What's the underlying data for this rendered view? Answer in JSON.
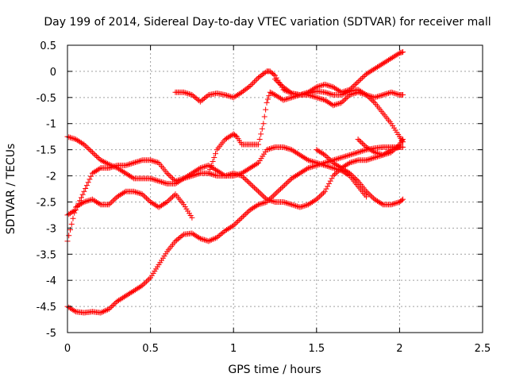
{
  "chart_data": {
    "type": "scatter",
    "title": "Day 199 of 2014, Sidereal Day-to-day VTEC variation (SDTVAR) for receiver mall",
    "xlabel": "GPS time / hours",
    "ylabel": "SDTVAR / TECUs",
    "xlim": [
      0,
      2.5
    ],
    "ylim": [
      -5,
      0.5
    ],
    "xticks": [
      0,
      0.5,
      1,
      1.5,
      2,
      2.5
    ],
    "xtick_labels": [
      "0",
      "0.5",
      "1",
      "1.5",
      "2",
      "2.5"
    ],
    "yticks": [
      0.5,
      0,
      -0.5,
      -1,
      -1.5,
      -2,
      -2.5,
      -3,
      -3.5,
      -4,
      -4.5,
      -5
    ],
    "ytick_labels": [
      "0.5",
      "0",
      "-0.5",
      "-1",
      "-1.5",
      "-2",
      "-2.5",
      "-3",
      "-3.5",
      "-4",
      "-4.5",
      "-5"
    ],
    "grid": true,
    "marker": "+",
    "color": "#ff0000",
    "series": [
      {
        "x": [
          0,
          0.05,
          0.1,
          0.15,
          0.2,
          0.25,
          0.3,
          0.35,
          0.4,
          0.45,
          0.5,
          0.55,
          0.6,
          0.65,
          0.7,
          0.75,
          0.8,
          0.85,
          0.9,
          0.95,
          1.0,
          1.05,
          1.1,
          1.15,
          1.2,
          1.25,
          1.3,
          1.35,
          1.4,
          1.45,
          1.5,
          1.55,
          1.6,
          1.65,
          1.7,
          1.75,
          1.8,
          1.85,
          1.9,
          1.95,
          2.02
        ],
        "y": [
          -4.5,
          -4.6,
          -4.62,
          -4.6,
          -4.62,
          -4.55,
          -4.4,
          -4.3,
          -4.2,
          -4.1,
          -3.95,
          -3.7,
          -3.45,
          -3.25,
          -3.12,
          -3.1,
          -3.2,
          -3.25,
          -3.18,
          -3.05,
          -2.95,
          -2.8,
          -2.65,
          -2.55,
          -2.5,
          -2.35,
          -2.2,
          -2.05,
          -1.95,
          -1.85,
          -1.8,
          -1.75,
          -1.7,
          -1.65,
          -1.6,
          -1.55,
          -1.5,
          -1.47,
          -1.45,
          -1.45,
          -1.45
        ]
      },
      {
        "x": [
          0,
          0.05,
          0.1,
          0.15,
          0.2,
          0.25,
          0.3,
          0.35,
          0.4,
          0.45,
          0.5,
          0.55,
          0.6,
          0.65,
          0.7,
          0.75
        ],
        "y": [
          -3.25,
          -2.6,
          -2.5,
          -2.45,
          -2.55,
          -2.55,
          -2.4,
          -2.3,
          -2.3,
          -2.35,
          -2.5,
          -2.6,
          -2.5,
          -2.35,
          -2.55,
          -2.8
        ]
      },
      {
        "x": [
          0,
          0.05,
          0.1,
          0.15,
          0.2,
          0.25,
          0.3,
          0.35,
          0.4,
          0.45,
          0.5,
          0.55,
          0.6,
          0.65,
          0.7,
          0.75,
          0.8,
          0.85,
          0.9,
          0.95,
          1.0,
          1.05,
          1.1,
          1.15,
          1.2,
          1.25,
          1.3,
          1.35,
          1.4,
          1.45,
          1.5,
          1.55,
          1.6,
          1.65,
          1.7,
          1.75,
          1.8,
          1.85,
          1.9,
          1.95,
          2.0
        ],
        "y": [
          -1.25,
          -1.3,
          -1.4,
          -1.55,
          -1.7,
          -1.78,
          -1.85,
          -1.95,
          -2.05,
          -2.05,
          -2.05,
          -2.1,
          -2.15,
          -2.15,
          -2.05,
          -2.0,
          -1.95,
          -1.95,
          -2.0,
          -2.0,
          -1.95,
          -2.0,
          -2.15,
          -2.3,
          -2.45,
          -2.5,
          -2.5,
          -2.55,
          -2.6,
          -2.55,
          -2.45,
          -2.3,
          -2.0,
          -1.85,
          -1.75,
          -1.7,
          -1.7,
          -1.65,
          -1.6,
          -1.5,
          -1.45
        ]
      },
      {
        "x": [
          0,
          0.05,
          0.1,
          0.15,
          0.2,
          0.25,
          0.3,
          0.35,
          0.4,
          0.45,
          0.5,
          0.55,
          0.6,
          0.65,
          0.7,
          0.75,
          0.8,
          0.85,
          0.9,
          0.95,
          1.0,
          1.05,
          1.1,
          1.15,
          1.2,
          1.25,
          1.3,
          1.35,
          1.4,
          1.45,
          1.5,
          1.55,
          1.6,
          1.65,
          1.7,
          1.75,
          1.8
        ],
        "y": [
          -2.75,
          -2.65,
          -2.3,
          -1.95,
          -1.85,
          -1.85,
          -1.8,
          -1.8,
          -1.75,
          -1.7,
          -1.7,
          -1.75,
          -1.95,
          -2.1,
          -2.05,
          -1.95,
          -1.85,
          -1.8,
          -1.9,
          -2.0,
          -2.0,
          -1.95,
          -1.85,
          -1.75,
          -1.5,
          -1.45,
          -1.45,
          -1.5,
          -1.6,
          -1.7,
          -1.75,
          -1.8,
          -1.85,
          -1.9,
          -2.0,
          -2.2,
          -2.4
        ]
      },
      {
        "x": [
          0.65,
          0.7,
          0.75,
          0.8,
          0.85,
          0.9,
          0.95,
          1.0,
          1.05,
          1.1,
          1.15,
          1.2,
          1.22,
          1.25,
          1.3,
          1.35,
          1.4,
          1.45,
          1.5,
          1.55,
          1.6,
          1.65,
          1.7,
          1.75,
          1.8,
          1.85,
          1.9,
          1.95,
          2.0,
          2.02
        ],
        "y": [
          -0.4,
          -0.4,
          -0.45,
          -0.58,
          -0.45,
          -0.42,
          -0.45,
          -0.5,
          -0.4,
          -0.28,
          -0.12,
          0.0,
          0.0,
          -0.08,
          -0.35,
          -0.42,
          -0.45,
          -0.4,
          -0.3,
          -0.25,
          -0.3,
          -0.4,
          -0.35,
          -0.2,
          -0.05,
          0.05,
          0.15,
          0.25,
          0.35,
          0.37
        ]
      },
      {
        "x": [
          0.85,
          0.9,
          0.95,
          1.0,
          1.02,
          1.05,
          1.1,
          1.15,
          1.18,
          1.2,
          1.22,
          1.25,
          1.3,
          1.35,
          1.4,
          1.45,
          1.5,
          1.55,
          1.6,
          1.65,
          1.7,
          1.75,
          1.8,
          1.85,
          1.9,
          1.95,
          2.0,
          2.02
        ],
        "y": [
          -1.95,
          -1.5,
          -1.3,
          -1.2,
          -1.25,
          -1.4,
          -1.4,
          -1.4,
          -1.0,
          -0.6,
          -0.4,
          -0.45,
          -0.55,
          -0.5,
          -0.45,
          -0.45,
          -0.5,
          -0.55,
          -0.65,
          -0.6,
          -0.45,
          -0.4,
          -0.45,
          -0.6,
          -0.8,
          -1.0,
          -1.25,
          -1.35
        ]
      },
      {
        "x": [
          1.5,
          1.55,
          1.6,
          1.65,
          1.7,
          1.75,
          1.8,
          1.85,
          1.9,
          1.95,
          2.0,
          2.02
        ],
        "y": [
          -1.5,
          -1.6,
          -1.75,
          -1.85,
          -1.95,
          -2.1,
          -2.3,
          -2.45,
          -2.55,
          -2.55,
          -2.5,
          -2.45
        ]
      },
      {
        "x": [
          1.75,
          1.8,
          1.85,
          1.9,
          1.95,
          2.0,
          2.02
        ],
        "y": [
          -1.3,
          -1.45,
          -1.55,
          -1.6,
          -1.55,
          -1.4,
          -1.3
        ]
      },
      {
        "x": [
          1.25,
          1.3,
          1.35,
          1.4,
          1.45,
          1.5,
          1.55,
          1.6,
          1.65,
          1.7,
          1.75,
          1.8,
          1.85,
          1.9,
          1.95,
          2.0,
          2.02
        ],
        "y": [
          -0.15,
          -0.3,
          -0.42,
          -0.45,
          -0.42,
          -0.38,
          -0.4,
          -0.45,
          -0.45,
          -0.38,
          -0.35,
          -0.45,
          -0.5,
          -0.45,
          -0.4,
          -0.45,
          -0.45
        ]
      }
    ]
  }
}
